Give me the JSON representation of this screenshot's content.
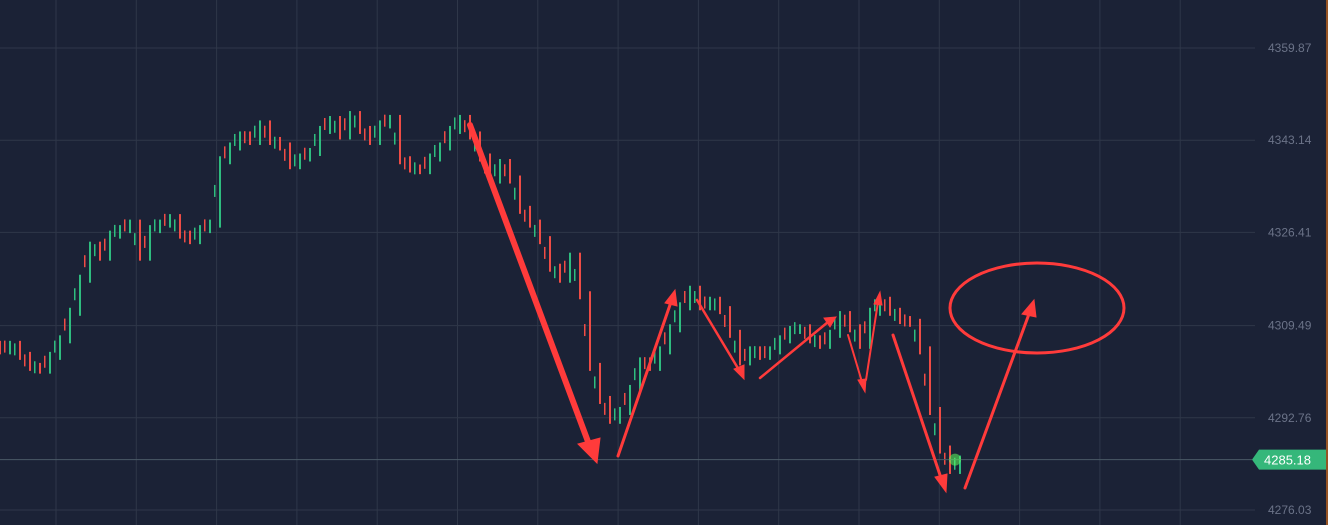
{
  "chart_data": {
    "type": "bar",
    "style": "candlestick-bars",
    "ylim": [
      4276.03,
      4359.87
    ],
    "y_ticks": [
      "4359.87",
      "4343.14",
      "4326.41",
      "4309.49",
      "4292.76",
      "4276.03"
    ],
    "y_tick_values": [
      4359.87,
      4343.14,
      4326.41,
      4309.49,
      4292.76,
      4276.03
    ],
    "current_price": "4285.18",
    "current_price_value": 4285.18,
    "grid": true,
    "closes": [
      4305,
      4306,
      4304,
      4302,
      4301.5,
      4304,
      4307,
      4312,
      4318,
      4324,
      4322,
      4326,
      4327,
      4328,
      4322,
      4327,
      4328,
      4329,
      4326,
      4325,
      4327,
      4328,
      4339.5,
      4342,
      4344,
      4343,
      4346,
      4343,
      4342,
      4338.6,
      4340,
      4341,
      4345,
      4346.8,
      4344,
      4347.7,
      4345,
      4343,
      4346,
      4347,
      4339.5,
      4338,
      4337.7,
      4340,
      4342,
      4345,
      4347,
      4344,
      4340,
      4336,
      4339,
      4336,
      4330.5,
      4328,
      4325,
      4320,
      4318,
      4322,
      4315,
      4302,
      4296,
      4292.4,
      4294,
      4298,
      4303,
      4302,
      4305,
      4309,
      4313,
      4316,
      4313,
      4314,
      4312.3,
      4308,
      4303,
      4305,
      4304,
      4305,
      4307,
      4308.7,
      4309,
      4307,
      4306,
      4308,
      4311.4,
      4309,
      4306,
      4312,
      4314,
      4312,
      4310.5,
      4310,
      4305,
      4294,
      4287,
      4283.3,
      4285.18
    ],
    "annotations": "hand-drawn red trend arrows and a red ellipse"
  },
  "colors": {
    "background": "#1b2236",
    "grid": "#2f3749",
    "up": "#2ebd7f",
    "down": "#ef4c45",
    "annotation": "#ff3b3b",
    "price_tag": "#35b77a",
    "right_border": "#c0641e"
  }
}
